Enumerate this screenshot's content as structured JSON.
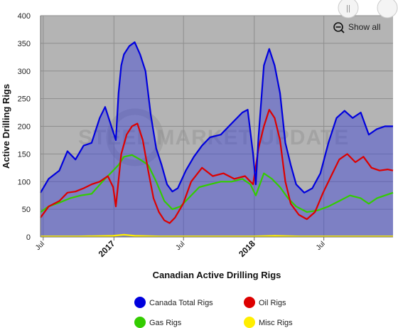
{
  "chart_data": {
    "type": "area",
    "title": "Canadian Active Drilling Rigs",
    "ylabel": "Active Drilling Rigs",
    "xlabel": "",
    "ylim": [
      0,
      400
    ],
    "yticks": [
      0,
      50,
      100,
      150,
      200,
      250,
      300,
      350,
      400
    ],
    "x_start": "2016-06-24",
    "x_end": "2018-12-28",
    "x_ticks": [
      {
        "label": "Jul",
        "date": "2016-07-01",
        "bold": false
      },
      {
        "label": "2017",
        "date": "2017-01-01",
        "bold": true
      },
      {
        "label": "Jul",
        "date": "2017-07-01",
        "bold": false
      },
      {
        "label": "2018",
        "date": "2018-01-01",
        "bold": true
      },
      {
        "label": "Jul",
        "date": "2018-07-01",
        "bold": false
      }
    ],
    "grid": true,
    "legend_position": "bottom",
    "watermark": "STEEL MARKET UPDATE",
    "series": [
      {
        "name": "Canada Total Rigs",
        "color": "#0000dd",
        "points": [
          [
            "2016-06-24",
            80
          ],
          [
            "2016-07-15",
            105
          ],
          [
            "2016-08-12",
            120
          ],
          [
            "2016-09-02",
            155
          ],
          [
            "2016-09-23",
            140
          ],
          [
            "2016-10-14",
            165
          ],
          [
            "2016-11-04",
            170
          ],
          [
            "2016-11-25",
            215
          ],
          [
            "2016-12-09",
            235
          ],
          [
            "2016-12-23",
            205
          ],
          [
            "2017-01-06",
            175
          ],
          [
            "2017-01-13",
            260
          ],
          [
            "2017-01-20",
            310
          ],
          [
            "2017-01-27",
            330
          ],
          [
            "2017-02-10",
            345
          ],
          [
            "2017-02-24",
            352
          ],
          [
            "2017-03-10",
            330
          ],
          [
            "2017-03-24",
            300
          ],
          [
            "2017-04-07",
            220
          ],
          [
            "2017-04-21",
            160
          ],
          [
            "2017-05-05",
            130
          ],
          [
            "2017-05-19",
            95
          ],
          [
            "2017-06-02",
            82
          ],
          [
            "2017-06-16",
            88
          ],
          [
            "2017-07-07",
            120
          ],
          [
            "2017-07-28",
            145
          ],
          [
            "2017-08-18",
            165
          ],
          [
            "2017-09-08",
            180
          ],
          [
            "2017-10-06",
            185
          ],
          [
            "2017-11-03",
            205
          ],
          [
            "2017-12-01",
            225
          ],
          [
            "2017-12-15",
            230
          ],
          [
            "2017-12-29",
            150
          ],
          [
            "2018-01-05",
            95
          ],
          [
            "2018-01-12",
            180
          ],
          [
            "2018-01-26",
            310
          ],
          [
            "2018-02-09",
            340
          ],
          [
            "2018-02-23",
            310
          ],
          [
            "2018-03-09",
            260
          ],
          [
            "2018-03-23",
            170
          ],
          [
            "2018-04-06",
            130
          ],
          [
            "2018-04-20",
            95
          ],
          [
            "2018-05-11",
            80
          ],
          [
            "2018-06-01",
            88
          ],
          [
            "2018-06-22",
            115
          ],
          [
            "2018-07-13",
            170
          ],
          [
            "2018-08-03",
            215
          ],
          [
            "2018-08-24",
            228
          ],
          [
            "2018-09-14",
            215
          ],
          [
            "2018-10-05",
            225
          ],
          [
            "2018-10-26",
            185
          ],
          [
            "2018-11-16",
            195
          ],
          [
            "2018-12-07",
            200
          ],
          [
            "2018-12-28",
            200
          ]
        ]
      },
      {
        "name": "Oil Rigs",
        "color": "#dd0000",
        "points": [
          [
            "2016-06-24",
            35
          ],
          [
            "2016-07-15",
            55
          ],
          [
            "2016-08-12",
            65
          ],
          [
            "2016-09-02",
            80
          ],
          [
            "2016-09-23",
            82
          ],
          [
            "2016-10-14",
            88
          ],
          [
            "2016-11-04",
            95
          ],
          [
            "2016-11-25",
            100
          ],
          [
            "2016-12-16",
            110
          ],
          [
            "2016-12-30",
            90
          ],
          [
            "2017-01-06",
            55
          ],
          [
            "2017-01-20",
            150
          ],
          [
            "2017-02-03",
            185
          ],
          [
            "2017-02-17",
            200
          ],
          [
            "2017-03-03",
            205
          ],
          [
            "2017-03-17",
            175
          ],
          [
            "2017-03-31",
            120
          ],
          [
            "2017-04-14",
            70
          ],
          [
            "2017-04-28",
            45
          ],
          [
            "2017-05-12",
            30
          ],
          [
            "2017-05-26",
            25
          ],
          [
            "2017-06-09",
            35
          ],
          [
            "2017-06-30",
            60
          ],
          [
            "2017-07-21",
            100
          ],
          [
            "2017-08-18",
            125
          ],
          [
            "2017-09-15",
            110
          ],
          [
            "2017-10-13",
            115
          ],
          [
            "2017-11-10",
            105
          ],
          [
            "2017-12-08",
            110
          ],
          [
            "2017-12-29",
            95
          ],
          [
            "2018-01-12",
            160
          ],
          [
            "2018-01-26",
            200
          ],
          [
            "2018-02-09",
            230
          ],
          [
            "2018-02-23",
            215
          ],
          [
            "2018-03-09",
            175
          ],
          [
            "2018-03-23",
            100
          ],
          [
            "2018-04-06",
            60
          ],
          [
            "2018-04-27",
            40
          ],
          [
            "2018-05-18",
            32
          ],
          [
            "2018-06-08",
            45
          ],
          [
            "2018-06-29",
            80
          ],
          [
            "2018-07-20",
            110
          ],
          [
            "2018-08-10",
            140
          ],
          [
            "2018-08-31",
            150
          ],
          [
            "2018-09-21",
            135
          ],
          [
            "2018-10-12",
            145
          ],
          [
            "2018-11-02",
            125
          ],
          [
            "2018-11-23",
            120
          ],
          [
            "2018-12-14",
            122
          ],
          [
            "2018-12-28",
            120
          ]
        ]
      },
      {
        "name": "Gas Rigs",
        "color": "#33cc00",
        "points": [
          [
            "2016-06-24",
            45
          ],
          [
            "2016-07-15",
            55
          ],
          [
            "2016-08-12",
            62
          ],
          [
            "2016-09-09",
            70
          ],
          [
            "2016-10-07",
            75
          ],
          [
            "2016-11-04",
            78
          ],
          [
            "2016-12-02",
            100
          ],
          [
            "2016-12-23",
            115
          ],
          [
            "2017-01-13",
            130
          ],
          [
            "2017-01-27",
            145
          ],
          [
            "2017-02-17",
            148
          ],
          [
            "2017-03-10",
            140
          ],
          [
            "2017-03-31",
            130
          ],
          [
            "2017-04-21",
            100
          ],
          [
            "2017-05-12",
            65
          ],
          [
            "2017-06-02",
            50
          ],
          [
            "2017-06-23",
            55
          ],
          [
            "2017-07-14",
            70
          ],
          [
            "2017-08-11",
            90
          ],
          [
            "2017-09-08",
            95
          ],
          [
            "2017-10-06",
            100
          ],
          [
            "2017-11-03",
            100
          ],
          [
            "2017-12-01",
            105
          ],
          [
            "2017-12-22",
            95
          ],
          [
            "2018-01-05",
            75
          ],
          [
            "2018-01-26",
            115
          ],
          [
            "2018-02-16",
            105
          ],
          [
            "2018-03-09",
            90
          ],
          [
            "2018-03-30",
            70
          ],
          [
            "2018-04-20",
            55
          ],
          [
            "2018-05-18",
            45
          ],
          [
            "2018-06-15",
            48
          ],
          [
            "2018-07-13",
            55
          ],
          [
            "2018-08-10",
            65
          ],
          [
            "2018-09-07",
            75
          ],
          [
            "2018-10-05",
            70
          ],
          [
            "2018-10-26",
            60
          ],
          [
            "2018-11-16",
            70
          ],
          [
            "2018-12-07",
            75
          ],
          [
            "2018-12-28",
            80
          ]
        ]
      },
      {
        "name": "Misc Rigs",
        "color": "#ffee00",
        "points": [
          [
            "2016-06-24",
            1
          ],
          [
            "2016-09-30",
            1
          ],
          [
            "2016-12-30",
            2
          ],
          [
            "2017-01-27",
            4
          ],
          [
            "2017-02-24",
            2
          ],
          [
            "2017-04-28",
            1
          ],
          [
            "2017-12-29",
            1
          ],
          [
            "2018-02-23",
            2
          ],
          [
            "2018-04-27",
            1
          ],
          [
            "2018-12-28",
            1
          ]
        ]
      }
    ]
  },
  "toolbar": {
    "show_all_label": "Show all",
    "pause_label": "||"
  },
  "legend": [
    {
      "label": "Canada Total Rigs",
      "color": "#0000dd"
    },
    {
      "label": "Oil Rigs",
      "color": "#dd0000"
    },
    {
      "label": "Gas Rigs",
      "color": "#33cc00"
    },
    {
      "label": "Misc Rigs",
      "color": "#ffee00"
    }
  ]
}
